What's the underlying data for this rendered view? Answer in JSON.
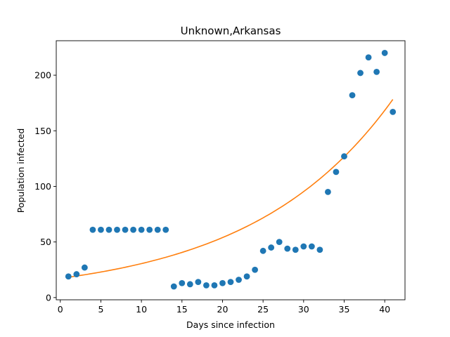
{
  "chart_data": {
    "type": "scatter",
    "title": "Unknown,Arkansas",
    "xlabel": "Days since infection",
    "ylabel": "Population infected",
    "xlim": [
      -0.5,
      42.5
    ],
    "ylim": [
      -2,
      231
    ],
    "xticks": [
      0,
      5,
      10,
      15,
      20,
      25,
      30,
      35,
      40
    ],
    "yticks": [
      0,
      50,
      100,
      150,
      200
    ],
    "grid": false,
    "colors": {
      "points": "#1f77b4",
      "fit": "#ff7f0e"
    },
    "series": [
      {
        "kind": "scatter",
        "x": [
          1,
          2,
          3,
          4,
          5,
          6,
          7,
          8,
          9,
          10,
          11,
          12,
          13,
          14,
          15,
          16,
          17,
          18,
          19,
          20,
          21,
          22,
          23,
          24,
          25,
          26,
          27,
          28,
          29,
          30,
          31,
          32,
          33,
          34,
          35,
          36,
          37,
          38,
          39,
          40,
          41
        ],
        "y": [
          19,
          21,
          27,
          61,
          61,
          61,
          61,
          61,
          61,
          61,
          61,
          61,
          61,
          10,
          13,
          12,
          14,
          11,
          11,
          13,
          14,
          16,
          19,
          25,
          42,
          45,
          50,
          44,
          43,
          46,
          46,
          43,
          95,
          113,
          127,
          182,
          202,
          216,
          203,
          220,
          167
        ]
      },
      {
        "kind": "line",
        "fit": {
          "a": 18.3,
          "b": 0.0569
        },
        "x_range": [
          1,
          41
        ]
      }
    ]
  }
}
